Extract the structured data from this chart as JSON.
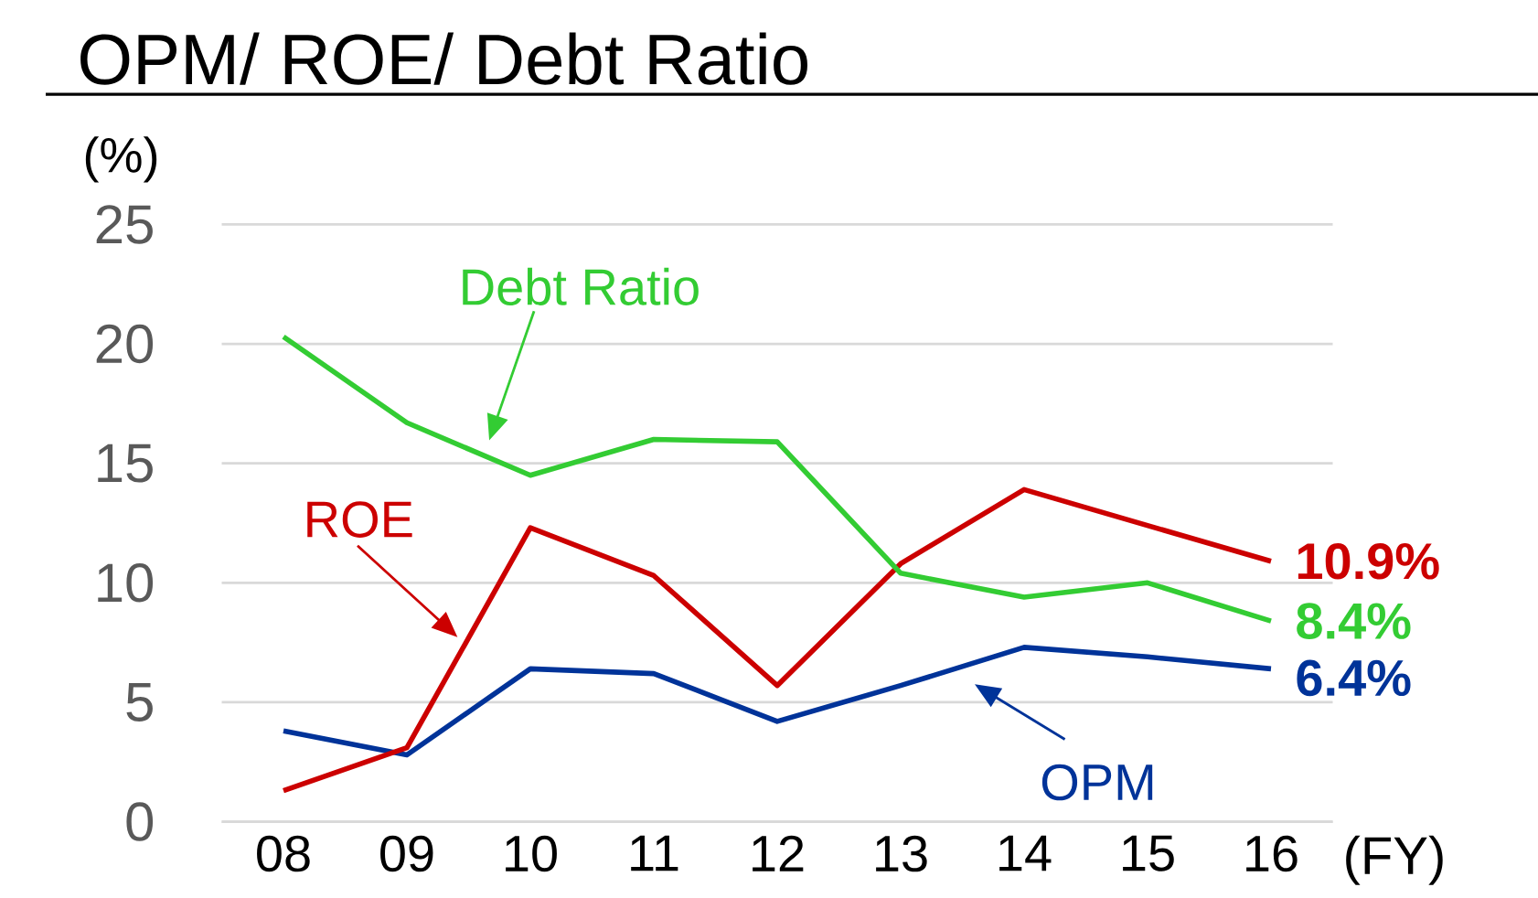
{
  "chart_data": {
    "type": "line",
    "title": "OPM/ ROE/ Debt Ratio",
    "ylabel": "(%)",
    "xlabel": "(FY)",
    "categories": [
      "08",
      "09",
      "10",
      "11",
      "12",
      "13",
      "14",
      "15",
      "16"
    ],
    "ylim": [
      0,
      25
    ],
    "yticks": [
      0,
      5,
      10,
      15,
      20,
      25
    ],
    "grid": "y",
    "series": [
      {
        "name": "OPM",
        "color": "#003399",
        "values": [
          3.8,
          2.8,
          6.4,
          6.2,
          4.2,
          5.7,
          7.3,
          6.9,
          6.4
        ],
        "value_labels": [
          null,
          null,
          null,
          null,
          null,
          null,
          null,
          null,
          "6.4%"
        ]
      },
      {
        "name": "ROE",
        "color": "#cc0000",
        "values": [
          1.3,
          3.1,
          12.3,
          10.3,
          5.7,
          10.8,
          13.9,
          12.4,
          10.9
        ],
        "value_labels": [
          null,
          null,
          null,
          null,
          null,
          null,
          null,
          null,
          "10.9%"
        ]
      },
      {
        "name": "Debt Ratio",
        "color": "#33cc33",
        "values": [
          20.3,
          16.7,
          14.5,
          16.0,
          15.9,
          10.4,
          9.4,
          10.0,
          8.4
        ],
        "value_labels": [
          null,
          null,
          null,
          null,
          null,
          null,
          null,
          null,
          "8.4%"
        ]
      }
    ]
  }
}
